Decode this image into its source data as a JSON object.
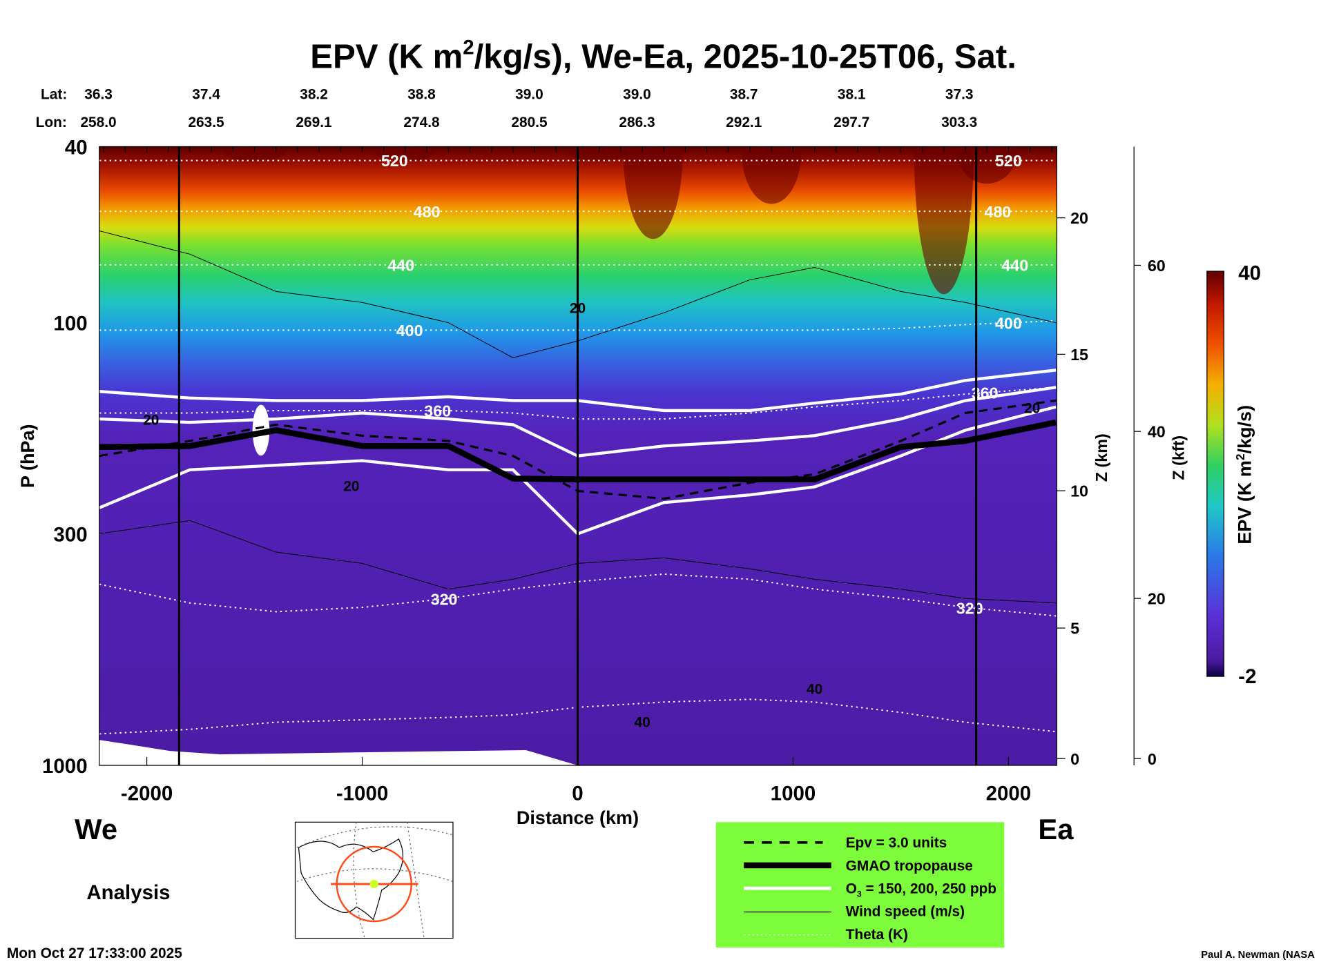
{
  "chart_data": {
    "type": "contour",
    "title": "EPV (K m²/kg/s), We-Ea, 2025-10-25T06, Sat.",
    "title_parts": {
      "pre": "EPV (K m",
      "sup": "2",
      "post": "/kg/s), We-Ea, 2025-10-25T06, Sat."
    },
    "lat_label": "Lat:",
    "lon_label": "Lon:",
    "lat": [
      "36.3",
      "37.4",
      "38.2",
      "38.8",
      "39.0",
      "39.0",
      "38.7",
      "38.1",
      "37.3"
    ],
    "lon": [
      "258.0",
      "263.5",
      "269.1",
      "274.8",
      "280.5",
      "286.3",
      "292.1",
      "297.7",
      "303.3"
    ],
    "marker_km": [
      -2000,
      -1500,
      -1000,
      -500,
      0,
      500,
      1000,
      1500,
      2000
    ],
    "xlabel": "Distance (km)",
    "xlim": [
      -2222,
      2222
    ],
    "xticks": [
      -2000,
      -1000,
      0,
      1000,
      2000
    ],
    "xtick_labels": [
      "-2000",
      "-1000",
      "0",
      "1000",
      "2000"
    ],
    "ylabel": "P (hPa)",
    "ylim": [
      1000,
      40
    ],
    "yscale": "log",
    "yticks": [
      40,
      100,
      300,
      1000
    ],
    "ytick_labels": [
      "40",
      "100",
      "300",
      "1000"
    ],
    "z_km_label": "Z (km)",
    "z_km_ticks": [
      "20",
      "15",
      "10",
      "5",
      "0"
    ],
    "z_kft_label": "Z (kft)",
    "z_kft_ticks": [
      "60",
      "40",
      "20",
      "0"
    ],
    "colorbar": {
      "label": "EPV (K m²/kg/s)",
      "label_pre": "EPV (K m",
      "label_sup": "2",
      "label_post": "/kg/s)",
      "min": -2,
      "max": 40,
      "min_label": "-2",
      "max_label": "40"
    },
    "vertical_lines_km": [
      -1850,
      0,
      1850
    ],
    "profile_km": [
      -2220,
      -1800,
      -1400,
      -1000,
      -600,
      -300,
      0,
      400,
      800,
      1100,
      1500,
      1800,
      2220
    ],
    "tropopause_hPa": [
      191,
      190,
      175,
      190,
      190,
      225,
      226,
      226,
      226,
      226,
      191,
      185,
      168
    ],
    "epv3_hPa": [
      200,
      185,
      170,
      180,
      185,
      200,
      240,
      250,
      230,
      220,
      185,
      160,
      150
    ],
    "ozone_hPa": [
      [
        143,
        148,
        150,
        150,
        147,
        150,
        150,
        158,
        158,
        152,
        145,
        135,
        128
      ],
      [
        165,
        168,
        165,
        160,
        165,
        170,
        200,
        190,
        185,
        180,
        165,
        150,
        140
      ],
      [
        262,
        215,
        210,
        205,
        215,
        215,
        300,
        255,
        245,
        235,
        200,
        175,
        155
      ]
    ],
    "theta": [
      {
        "level": "520",
        "hPa": [
          43,
          43,
          43,
          43,
          43,
          43,
          43,
          43,
          43,
          43,
          43,
          43,
          43
        ],
        "label_km": [
          -850,
          2000
        ]
      },
      {
        "level": "480",
        "hPa": [
          56,
          56,
          56,
          56,
          56,
          56,
          56,
          56,
          56,
          56,
          56,
          56,
          56
        ],
        "label_km": [
          -700,
          1950
        ]
      },
      {
        "level": "440",
        "hPa": [
          74,
          74,
          74,
          74,
          74,
          74,
          74,
          74,
          74,
          74,
          74,
          74,
          74
        ],
        "label_km": [
          -820,
          2030
        ]
      },
      {
        "level": "400",
        "hPa": [
          104,
          104,
          104,
          104,
          104,
          104,
          104,
          104,
          104,
          104,
          103,
          101,
          99
        ],
        "label_km": [
          -780,
          2000
        ]
      },
      {
        "level": "360",
        "hPa": [
          160,
          160,
          158,
          158,
          158,
          160,
          165,
          165,
          160,
          155,
          150,
          145,
          140
        ],
        "label_km": [
          -650,
          1890
        ]
      },
      {
        "level": "320",
        "hPa": [
          390,
          430,
          450,
          440,
          420,
          400,
          385,
          370,
          380,
          400,
          420,
          440,
          460
        ],
        "label_km": [
          -620,
          1820
        ]
      },
      {
        "level": "300",
        "hPa": [
          850,
          830,
          800,
          790,
          780,
          770,
          740,
          720,
          710,
          720,
          760,
          800,
          840
        ],
        "label_km": []
      }
    ],
    "wind_labels": [
      "20",
      "20",
      "40",
      "40",
      "20",
      "20"
    ],
    "legend": {
      "placement": "bottom-center",
      "items": [
        "Epv = 3.0 units",
        "GMAO tropopause",
        "O₃ = 150, 200, 250 ppb",
        "Wind speed (m/s)",
        "Theta (K)"
      ],
      "ozone_parts": {
        "pre": "O",
        "sub": "3",
        "post": " = 150, 200, 250 ppb"
      },
      "background": "#7cfc3a"
    },
    "west_label": "We",
    "east_label": "Ea",
    "analysis_label": "Analysis",
    "timestamp": "Mon Oct 27 17:33:00 2025",
    "credit": "Paul A. Newman (NASA"
  }
}
